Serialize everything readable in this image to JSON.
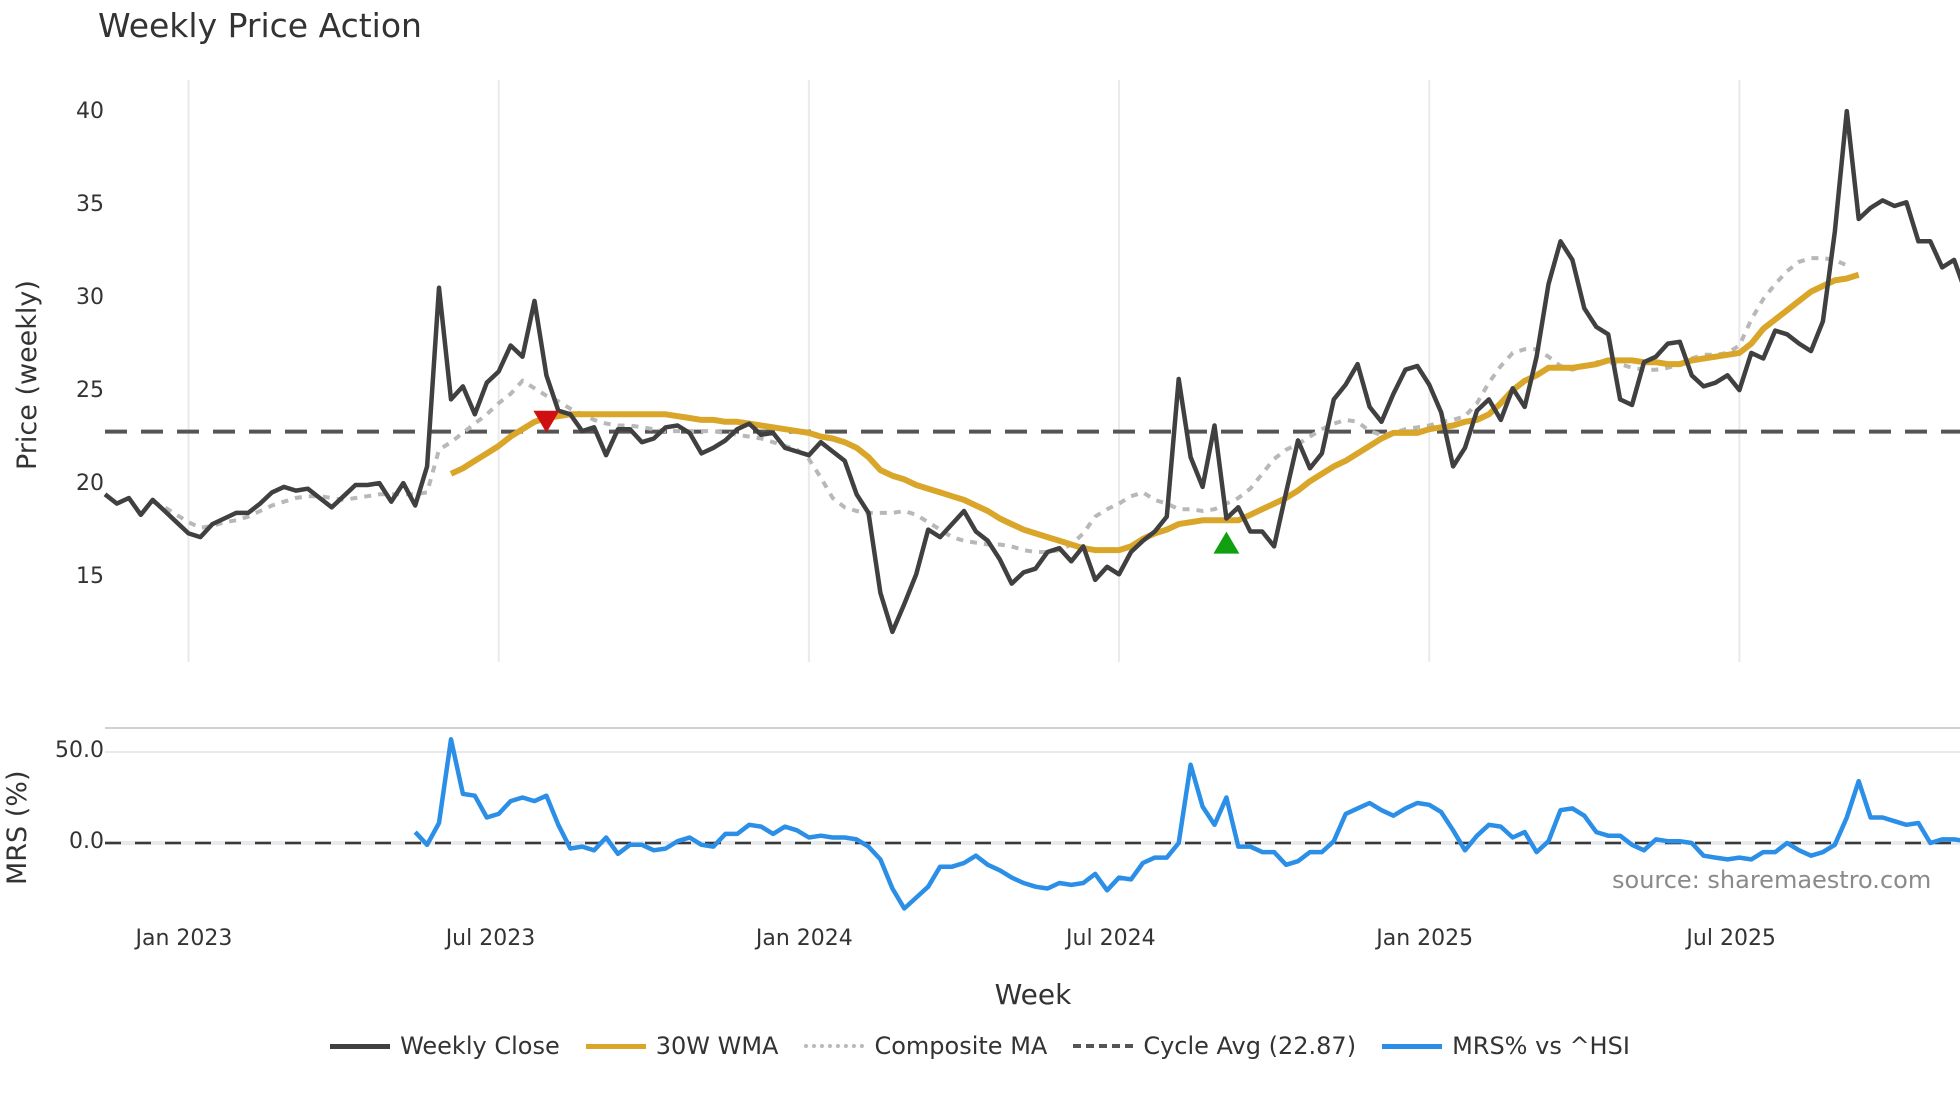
{
  "title": "Weekly Price Action",
  "source_note": "source: sharemaestro.com",
  "colors": {
    "weekly_close": "#404040",
    "wma": "#d9a62a",
    "composite": "#b8b8b8",
    "cycle_avg": "#555555",
    "mrs": "#2b8fe8",
    "sell_marker": "#d01010",
    "buy_marker": "#10a010",
    "grid": "#e8eaee"
  },
  "legend": [
    {
      "key": "weekly_close",
      "label": "Weekly Close"
    },
    {
      "key": "wma",
      "label": "30W WMA"
    },
    {
      "key": "composite",
      "label": "Composite MA"
    },
    {
      "key": "cycle_avg",
      "label": "Cycle Avg (22.87)"
    },
    {
      "key": "mrs",
      "label": "MRS% vs ^HSI"
    }
  ],
  "axes": {
    "x_title": "Week",
    "price_y_title": "Price (weekly)",
    "mrs_y_title": "MRS (%)",
    "x_ticks": [
      "Jan 2023",
      "Jul 2023",
      "Jan 2024",
      "Jul 2024",
      "Jan 2025",
      "Jul 2025"
    ],
    "price_y_ticks": [
      "15",
      "20",
      "25",
      "30",
      "35",
      "40"
    ],
    "mrs_y_ticks": [
      "0.0",
      "50.0"
    ]
  },
  "chart_data": [
    {
      "type": "line",
      "title": "Weekly Price Action",
      "xlabel": "Week",
      "ylabel": "Price (weekly)",
      "ylim": [
        10.5,
        42
      ],
      "x_start_week_offset_from_jan2023": -7,
      "x_ticks": [
        "Jan 2023",
        "Jul 2023",
        "Jan 2024",
        "Jul 2024",
        "Jan 2025",
        "Jul 2025"
      ],
      "grid": "vertical",
      "legend_position": "bottom",
      "cycle_avg": 22.87,
      "series": [
        {
          "name": "Weekly Close",
          "start_week": 0,
          "values": [
            19.5,
            19.0,
            19.3,
            18.4,
            19.2,
            18.6,
            18.0,
            17.4,
            17.2,
            17.9,
            18.2,
            18.5,
            18.5,
            19.0,
            19.6,
            19.9,
            19.7,
            19.8,
            19.3,
            18.8,
            19.4,
            20.0,
            20.0,
            20.1,
            19.1,
            20.1,
            18.9,
            21.0,
            30.6,
            24.6,
            25.3,
            23.8,
            25.5,
            26.1,
            27.5,
            26.9,
            29.9,
            25.9,
            24.0,
            23.8,
            22.9,
            23.1,
            21.6,
            23.0,
            23.0,
            22.3,
            22.5,
            23.1,
            23.2,
            22.8,
            21.7,
            22.0,
            22.4,
            23.0,
            23.3,
            22.7,
            22.8,
            22.0,
            21.8,
            21.6,
            22.3,
            21.8,
            21.3,
            19.5,
            18.5,
            14.2,
            12.1,
            13.6,
            15.2,
            17.6,
            17.2,
            17.9,
            18.6,
            17.5,
            17.0,
            16.0,
            14.7,
            15.3,
            15.5,
            16.4,
            16.6,
            15.9,
            16.7,
            14.9,
            15.6,
            15.2,
            16.4,
            17.0,
            17.5,
            18.3,
            25.7,
            21.5,
            19.9,
            23.2,
            18.2,
            18.8,
            17.5,
            17.5,
            16.7,
            19.6,
            22.4,
            20.9,
            21.7,
            24.6,
            25.4,
            26.5,
            24.2,
            23.4,
            24.9,
            26.2,
            26.4,
            25.4,
            23.9,
            21.0,
            22.0,
            24.0,
            24.6,
            23.5,
            25.2,
            24.2,
            26.9,
            30.8,
            33.1,
            32.1,
            29.5,
            28.5,
            28.1,
            24.6,
            24.3,
            26.6,
            26.9,
            27.6,
            27.7,
            25.9,
            25.3,
            25.5,
            25.9,
            25.1,
            27.1,
            26.8,
            28.3,
            28.1,
            27.6,
            27.2,
            28.8,
            33.6,
            40.1,
            34.3,
            34.9,
            35.3,
            35.0,
            35.2,
            33.1,
            33.1,
            31.7,
            32.1,
            30.3
          ]
        },
        {
          "name": "30W WMA",
          "start_week": 29,
          "values": [
            20.6,
            20.9,
            21.3,
            21.7,
            22.1,
            22.6,
            23.0,
            23.4,
            23.6,
            23.7,
            23.8,
            23.8,
            23.8,
            23.8,
            23.8,
            23.8,
            23.8,
            23.8,
            23.8,
            23.7,
            23.6,
            23.5,
            23.5,
            23.4,
            23.4,
            23.3,
            23.2,
            23.1,
            23.0,
            22.9,
            22.8,
            22.6,
            22.5,
            22.3,
            22.0,
            21.5,
            20.8,
            20.5,
            20.3,
            20.0,
            19.8,
            19.6,
            19.4,
            19.2,
            18.9,
            18.6,
            18.2,
            17.9,
            17.6,
            17.4,
            17.2,
            17.0,
            16.8,
            16.6,
            16.5,
            16.5,
            16.5,
            16.7,
            17.1,
            17.4,
            17.6,
            17.9,
            18.0,
            18.1,
            18.1,
            18.1,
            18.1,
            18.4,
            18.7,
            19.0,
            19.3,
            19.7,
            20.2,
            20.6,
            21.0,
            21.3,
            21.7,
            22.1,
            22.5,
            22.8,
            22.8,
            22.8,
            23.0,
            23.1,
            23.2,
            23.4,
            23.5,
            23.8,
            24.4,
            25.1,
            25.6,
            25.9,
            26.3,
            26.3,
            26.3,
            26.4,
            26.5,
            26.7,
            26.7,
            26.7,
            26.6,
            26.6,
            26.5,
            26.5,
            26.7,
            26.8,
            26.9,
            27.0,
            27.1,
            27.6,
            28.4,
            28.9,
            29.4,
            29.9,
            30.4,
            30.7,
            31.0,
            31.1,
            31.3
          ]
        },
        {
          "name": "Composite MA",
          "start_week": 4,
          "values": [
            19.1,
            18.8,
            18.4,
            18.0,
            17.7,
            17.8,
            18.0,
            18.1,
            18.3,
            18.6,
            18.9,
            19.1,
            19.3,
            19.4,
            19.4,
            19.3,
            19.2,
            19.3,
            19.4,
            19.5,
            19.5,
            19.5,
            19.5,
            19.6,
            21.9,
            22.3,
            22.8,
            23.3,
            23.8,
            24.4,
            24.9,
            25.6,
            25.2,
            24.8,
            24.5,
            24.1,
            23.8,
            23.5,
            23.3,
            23.2,
            23.2,
            23.1,
            23.0,
            22.9,
            22.9,
            22.9,
            22.9,
            22.9,
            22.8,
            22.7,
            22.6,
            22.5,
            22.3,
            22.1,
            21.9,
            21.4,
            20.4,
            19.3,
            18.8,
            18.6,
            18.5,
            18.5,
            18.5,
            18.6,
            18.4,
            18.0,
            17.6,
            17.2,
            17.0,
            16.9,
            16.8,
            16.8,
            16.7,
            16.5,
            16.4,
            16.4,
            16.5,
            16.8,
            17.4,
            18.3,
            18.7,
            19.0,
            19.4,
            19.6,
            19.2,
            19.0,
            18.7,
            18.7,
            18.6,
            18.7,
            19.0,
            19.3,
            19.8,
            20.6,
            21.4,
            21.9,
            22.2,
            22.6,
            23.0,
            23.3,
            23.5,
            23.4,
            22.9,
            22.7,
            22.8,
            23.0,
            23.1,
            23.2,
            23.4,
            23.5,
            23.7,
            24.4,
            25.5,
            26.4,
            27.1,
            27.3,
            27.3,
            26.9,
            26.4,
            26.2,
            26.4,
            26.6,
            26.6,
            26.5,
            26.3,
            26.2,
            26.2,
            26.3,
            26.5,
            26.8,
            27.0,
            27.0,
            27.1,
            27.5,
            28.9,
            30.0,
            30.8,
            31.5,
            32.0,
            32.2,
            32.2,
            32.1,
            31.8
          ]
        }
      ],
      "markers": [
        {
          "type": "sell",
          "shape": "down-triangle",
          "week": 37,
          "value": 23.4
        },
        {
          "type": "buy",
          "shape": "up-triangle",
          "week": 94,
          "value": 16.9
        }
      ]
    },
    {
      "type": "line",
      "title": "MRS% vs ^HSI",
      "ylabel": "MRS (%)",
      "ylim": [
        -38,
        63
      ],
      "zero_line": 0,
      "series": [
        {
          "name": "MRS% vs ^HSI",
          "start_week": 26,
          "values": [
            6,
            -1,
            11,
            57,
            27,
            26,
            14,
            16,
            23,
            25,
            23,
            26,
            10,
            -3,
            -2,
            -4,
            3,
            -6,
            -1,
            -1,
            -4,
            -3,
            1,
            3,
            -1,
            -2,
            5,
            5,
            10,
            9,
            5,
            9,
            7,
            3,
            4,
            3,
            3,
            2,
            -2,
            -9,
            -25,
            -36,
            -30,
            -24,
            -13,
            -13,
            -11,
            -7,
            -12,
            -15,
            -19,
            -22,
            -24,
            -25,
            -22,
            -23,
            -22,
            -17,
            -26,
            -19,
            -20,
            -11,
            -8,
            -8,
            0,
            43,
            20,
            10,
            25,
            -2,
            -2,
            -5,
            -5,
            -12,
            -10,
            -5,
            -5,
            1,
            16,
            19,
            22,
            18,
            15,
            19,
            22,
            21,
            17,
            7,
            -4,
            4,
            10,
            9,
            3,
            6,
            -5,
            1,
            18,
            19,
            15,
            6,
            4,
            4,
            -1,
            -4,
            2,
            1,
            1,
            0,
            -7,
            -8,
            -9,
            -8,
            -9,
            -5,
            -5,
            0,
            -4,
            -7,
            -5,
            -1,
            14,
            34,
            14,
            14,
            12,
            10,
            11,
            0,
            2,
            2,
            1,
            -6
          ]
        }
      ]
    }
  ]
}
